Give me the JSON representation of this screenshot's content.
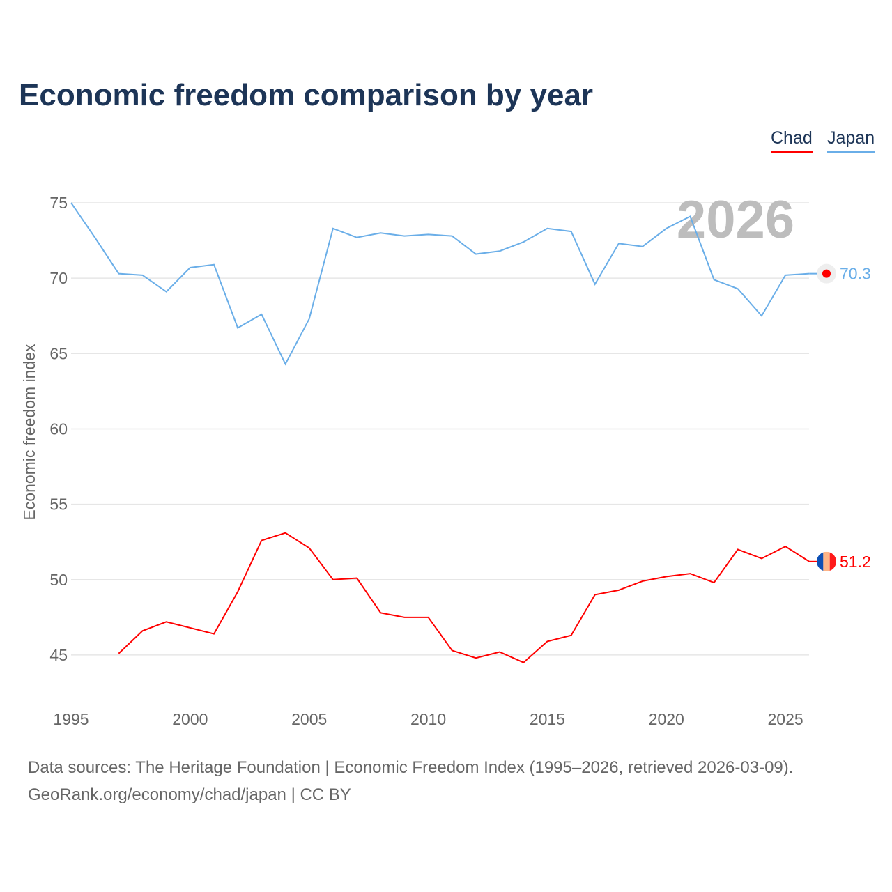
{
  "chart_data": {
    "type": "line",
    "title": "Economic freedom comparison by year",
    "xlabel": "",
    "ylabel": "Economic freedom index",
    "xlim": [
      1995,
      2026
    ],
    "ylim": [
      42.5,
      76
    ],
    "yticks": [
      45,
      50,
      55,
      60,
      65,
      70,
      75
    ],
    "xticks": [
      1995,
      2000,
      2005,
      2010,
      2015,
      2020,
      2025
    ],
    "grid": true,
    "legend_position": "top-right",
    "year_watermark": "2026",
    "series": [
      {
        "name": "Chad",
        "color": "#ff0000",
        "end_label": "51.2",
        "x": [
          1997,
          1998,
          1999,
          2000,
          2001,
          2002,
          2003,
          2004,
          2005,
          2006,
          2007,
          2008,
          2009,
          2010,
          2011,
          2012,
          2013,
          2014,
          2015,
          2016,
          2017,
          2018,
          2019,
          2020,
          2021,
          2022,
          2023,
          2024,
          2025,
          2026
        ],
        "values": [
          45.1,
          46.6,
          47.2,
          46.8,
          46.4,
          49.2,
          52.6,
          53.1,
          52.1,
          50.0,
          50.1,
          47.8,
          47.5,
          47.5,
          45.3,
          44.8,
          45.2,
          44.5,
          45.9,
          46.3,
          49.0,
          49.3,
          49.9,
          50.2,
          50.4,
          49.8,
          52.0,
          51.4,
          52.2,
          51.2
        ]
      },
      {
        "name": "Japan",
        "color": "#6aaee8",
        "end_label": "70.3",
        "x": [
          1995,
          1996,
          1997,
          1998,
          1999,
          2000,
          2001,
          2002,
          2003,
          2004,
          2005,
          2006,
          2007,
          2008,
          2009,
          2010,
          2011,
          2012,
          2013,
          2014,
          2015,
          2016,
          2017,
          2018,
          2019,
          2020,
          2021,
          2022,
          2023,
          2024,
          2025,
          2026
        ],
        "values": [
          75.0,
          72.7,
          70.3,
          70.2,
          69.1,
          70.7,
          70.9,
          66.7,
          67.6,
          64.3,
          67.3,
          73.3,
          72.7,
          73.0,
          72.8,
          72.9,
          72.8,
          71.6,
          71.8,
          72.4,
          73.3,
          73.1,
          69.6,
          72.3,
          72.1,
          73.3,
          74.1,
          69.9,
          69.3,
          67.5,
          70.2,
          70.3
        ]
      }
    ]
  },
  "footer": {
    "line1": "Data sources: The Heritage Foundation | Economic Freedom Index (1995–2026, retrieved 2026-03-09).",
    "line2": "GeoRank.org/economy/chad/japan | CC BY"
  }
}
